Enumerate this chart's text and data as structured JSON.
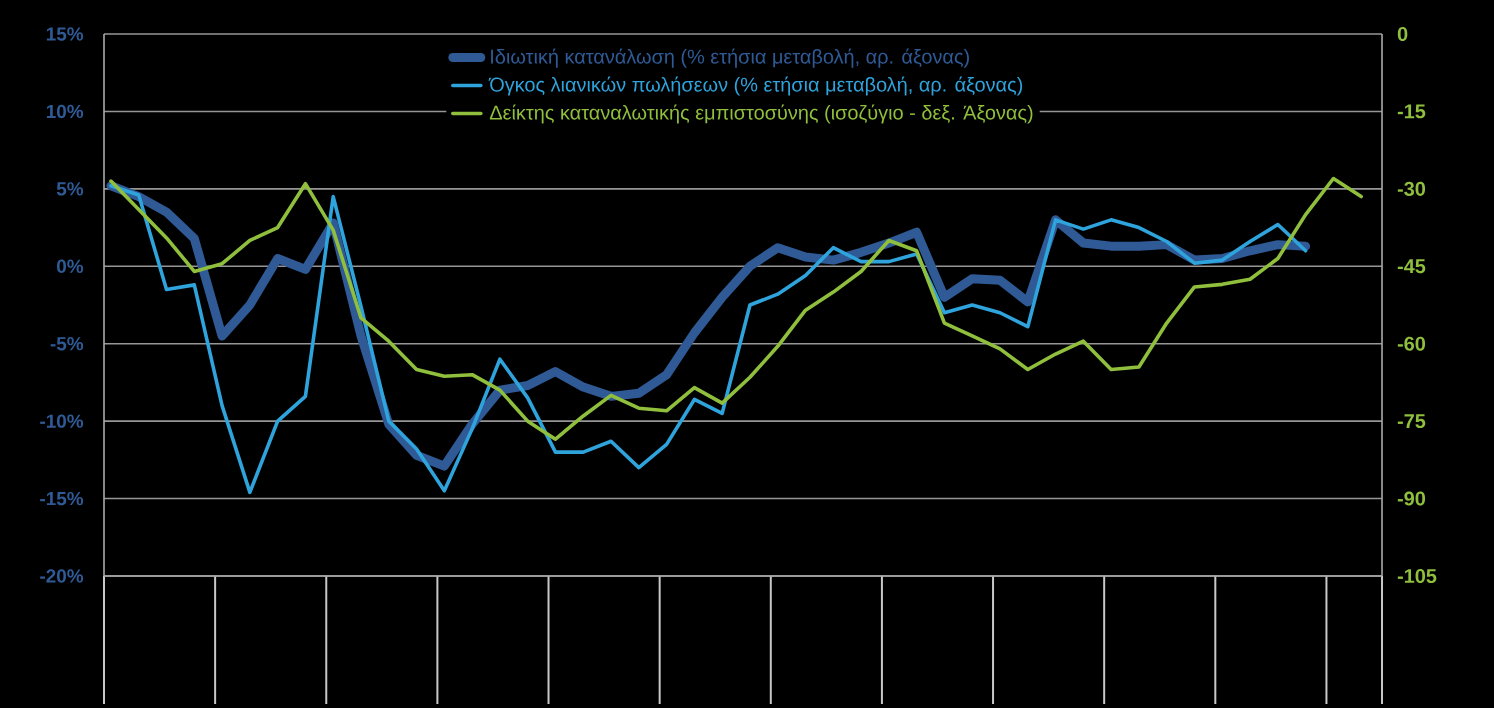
{
  "chart_data": {
    "type": "line",
    "categories": [
      null,
      null,
      null,
      null,
      null,
      null,
      null,
      null,
      null,
      null,
      null,
      null,
      null,
      null,
      null,
      null,
      null,
      null,
      null,
      null,
      null,
      null,
      null,
      null,
      null,
      null,
      null,
      null,
      null,
      null,
      null,
      null,
      null,
      null,
      null,
      null,
      null,
      null,
      null,
      null,
      null,
      null,
      null,
      null,
      null,
      null
    ],
    "series": [
      {
        "name": "Ιδιωτική κατανάλωση (% ετήσια μεταβολή, αρ. άξονας)",
        "color": "#2f5a96",
        "values": [
          5.2,
          4.5,
          3.5,
          1.8,
          -4.5,
          -2.5,
          0.5,
          -0.2,
          2.8,
          -4.5,
          -10.2,
          -12.2,
          -12.9,
          -10.2,
          -8.0,
          -7.7,
          -6.8,
          -7.8,
          -8.4,
          -8.2,
          -7.0,
          -4.3,
          -2.0,
          0.0,
          1.2,
          0.6,
          0.4,
          0.9,
          1.5,
          2.2,
          -2.0,
          -0.8,
          -0.9,
          -2.3,
          3.0,
          1.5,
          1.3,
          1.3,
          1.4,
          0.4,
          0.5,
          1.0,
          1.4,
          1.3,
          null,
          null
        ]
      },
      {
        "name": "Όγκος λιανικών πωλήσεων (% ετήσια μεταβολή, αρ. άξονας)",
        "color": "#2ea3dc",
        "values": [
          5.2,
          4.6,
          -1.5,
          -1.2,
          -9,
          -14.6,
          -10,
          -8.4,
          4.5,
          -2.6,
          -10,
          -11.8,
          -14.5,
          -10.5,
          -6,
          -8.5,
          -12,
          -12,
          -11.3,
          -13,
          -11.5,
          -8.6,
          -9.5,
          -2.5,
          -1.8,
          -0.6,
          1.2,
          0.3,
          0.3,
          0.8,
          -3,
          -2.5,
          -3,
          -3.9,
          3,
          2.4,
          3,
          2.5,
          1.6,
          0.2,
          0.4,
          1.6,
          2.7,
          1.0,
          null,
          null
        ]
      },
      {
        "name": "Δείκτης καταναλωτικής εμπιστοσύνης (ισοζύγιο - δεξ. Άξονας)",
        "color": "#8fbf3c",
        "axis": "y2",
        "values": [
          -28.5,
          -34,
          -39.5,
          -46,
          -44.5,
          -40,
          -37.5,
          -29,
          -38,
          -55,
          -59.5,
          -65,
          -66.3,
          -66,
          -69,
          -75,
          -78.5,
          -74,
          -70,
          -72.5,
          -73,
          -68.5,
          -71.5,
          -66.5,
          -60.5,
          -53.5,
          -50,
          -46,
          -40,
          -42,
          -56,
          -58.5,
          -61,
          -65,
          -62,
          -59.5,
          -65,
          -64.5,
          -56,
          -49,
          -48.5,
          -47.5,
          -43.5,
          -35,
          -28,
          -31.5
        ]
      }
    ],
    "ylim": [
      -20,
      15
    ],
    "yticks": [
      {
        "value": -20,
        "label": "-20%"
      },
      {
        "value": -15,
        "label": "-15%"
      },
      {
        "value": -10,
        "label": "-10%"
      },
      {
        "value": -5,
        "label": "-5%"
      },
      {
        "value": 0,
        "label": "0%"
      },
      {
        "value": 5,
        "label": "5%"
      },
      {
        "value": 10,
        "label": "10%"
      },
      {
        "value": 15,
        "label": "15%"
      }
    ],
    "y2lim": [
      -105,
      0
    ],
    "y2ticks": [
      -105,
      -90,
      -75,
      -60,
      -45,
      -30,
      -15,
      0
    ],
    "grid": "y",
    "legend": "top"
  }
}
